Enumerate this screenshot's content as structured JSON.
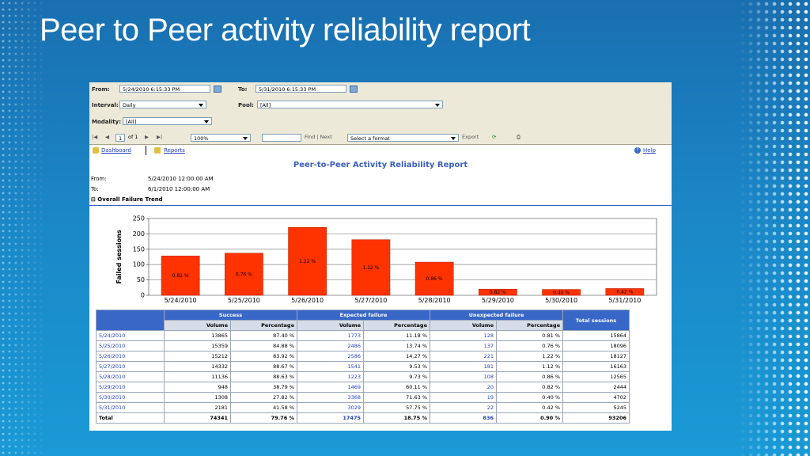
{
  "slide": {
    "title": "Peer to Peer activity reliability report"
  },
  "params": {
    "from_label": "From:",
    "from_value": "5/24/2010 6:15:33 PM",
    "to_label": "To:",
    "to_value": "5/31/2010 6:15:33 PM",
    "interval_label": "Interval:",
    "interval_value": "Daily",
    "pool_label": "Pool:",
    "pool_value": "[All]",
    "modality_label": "Modality:",
    "modality_value": "[All]"
  },
  "toolbar": {
    "page_value": "1",
    "of_pages": "of 1",
    "zoom_value": "100%",
    "find_label": "Find | Next",
    "format_value": "Select a format",
    "export_label": "Export"
  },
  "nav": {
    "dashboard": "Dashboard",
    "reports": "Reports",
    "help": "Help"
  },
  "report": {
    "title": "Peer-to-Peer Activity Reliability Report",
    "from_label": "From:",
    "from_value": "5/24/2010 12:00:00 AM",
    "to_label": "To:",
    "to_value": "6/1/2010 12:00:00 AM",
    "section": "⊟ Overall Failure Trend"
  },
  "colors": {
    "bar": "#ff3300",
    "header": "#3867c8",
    "title": "#3a5fc0"
  },
  "chart_data": {
    "type": "bar",
    "categories": [
      "5/24/2010",
      "5/25/2010",
      "5/26/2010",
      "5/27/2010",
      "5/28/2010",
      "5/29/2010",
      "5/30/2010",
      "5/31/2010"
    ],
    "values": [
      128,
      137,
      221,
      181,
      108,
      20,
      19,
      22
    ],
    "labels": [
      "0.81 %",
      "0.76 %",
      "1.22 %",
      "1.12 %",
      "0.86 %",
      "0.82 %",
      "0.40 %",
      "0.42 %"
    ],
    "ylabel": "Failed sessions",
    "ylim": [
      0,
      250
    ],
    "yticks": [
      0,
      50,
      100,
      150,
      200,
      250
    ],
    "grid": true
  },
  "table": {
    "groups": [
      "Success",
      "Expected failure",
      "Unexpected failure",
      "Total sessions"
    ],
    "subheaders": [
      "Volume",
      "Percentage",
      "Volume",
      "Percentage",
      "Volume",
      "Percentage"
    ],
    "rows": [
      [
        "5/24/2010",
        "13865",
        "87.40 %",
        "1773",
        "11.18 %",
        "128",
        "0.81 %",
        "15864"
      ],
      [
        "5/25/2010",
        "15359",
        "84.88 %",
        "2486",
        "13.74 %",
        "137",
        "0.76 %",
        "18096"
      ],
      [
        "5/26/2010",
        "15212",
        "83.92 %",
        "2586",
        "14.27 %",
        "221",
        "1.22 %",
        "18127"
      ],
      [
        "5/27/2010",
        "14332",
        "88.67 %",
        "1541",
        "9.53 %",
        "181",
        "1.12 %",
        "16163"
      ],
      [
        "5/28/2010",
        "11136",
        "88.63 %",
        "1223",
        "9.73 %",
        "108",
        "0.86 %",
        "12565"
      ],
      [
        "5/29/2010",
        "948",
        "38.79 %",
        "1469",
        "60.11 %",
        "20",
        "0.82 %",
        "2444"
      ],
      [
        "5/30/2010",
        "1308",
        "27.82 %",
        "3368",
        "71.63 %",
        "19",
        "0.40 %",
        "4702"
      ],
      [
        "5/31/2010",
        "2181",
        "41.58 %",
        "3029",
        "57.75 %",
        "22",
        "0.42 %",
        "5245"
      ]
    ],
    "total": [
      "Total",
      "74341",
      "79.76 %",
      "17475",
      "18.75 %",
      "836",
      "0.90 %",
      "93206"
    ]
  }
}
